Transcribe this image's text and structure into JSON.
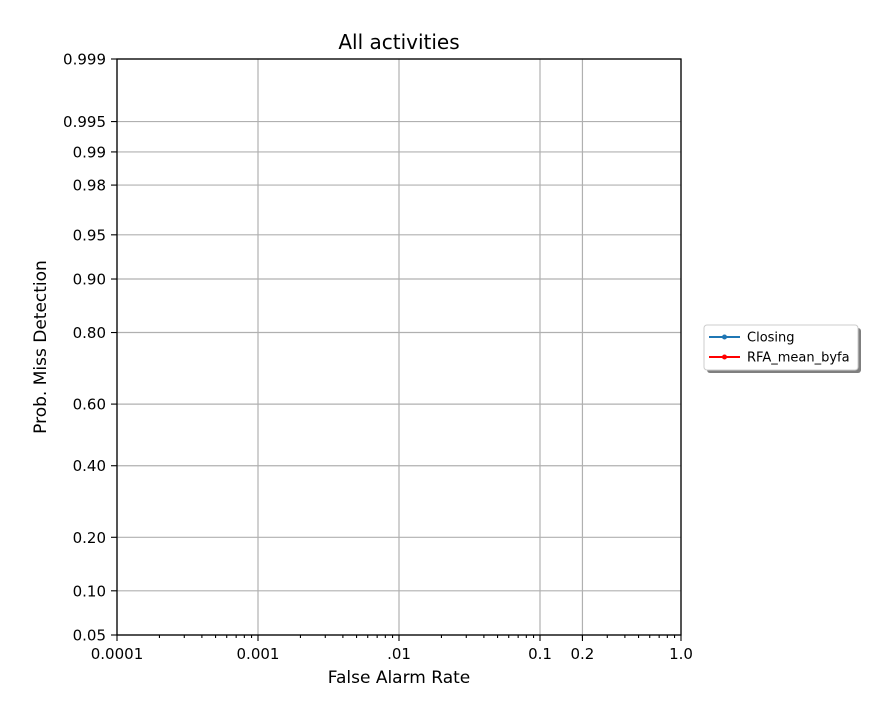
{
  "chart_data": {
    "type": "line",
    "title": "All activities",
    "xlabel": "False Alarm Rate",
    "ylabel": "Prob. Miss Detection",
    "x_scale": "log",
    "y_scale": "normal-deviate",
    "xlim": [
      0.0001,
      1.0
    ],
    "ylim": [
      0.05,
      0.999
    ],
    "grid": true,
    "x_ticks": [
      {
        "value": 0.0001,
        "label": "0.0001"
      },
      {
        "value": 0.001,
        "label": "0.001"
      },
      {
        "value": 0.01,
        "label": ".01"
      },
      {
        "value": 0.1,
        "label": "0.1"
      },
      {
        "value": 0.2,
        "label": "0.2"
      },
      {
        "value": 1.0,
        "label": "1.0"
      }
    ],
    "y_ticks": [
      {
        "value": 0.05,
        "label": "0.05"
      },
      {
        "value": 0.1,
        "label": "0.10"
      },
      {
        "value": 0.2,
        "label": "0.20"
      },
      {
        "value": 0.4,
        "label": "0.40"
      },
      {
        "value": 0.6,
        "label": "0.60"
      },
      {
        "value": 0.8,
        "label": "0.80"
      },
      {
        "value": 0.9,
        "label": "0.90"
      },
      {
        "value": 0.95,
        "label": "0.95"
      },
      {
        "value": 0.98,
        "label": "0.98"
      },
      {
        "value": 0.99,
        "label": "0.99"
      },
      {
        "value": 0.995,
        "label": "0.995"
      },
      {
        "value": 0.999,
        "label": "0.999"
      }
    ],
    "legend_position": "right, outside plot",
    "series": [
      {
        "name": "Closing",
        "color": "#1f77b4",
        "marker": "dot",
        "x": [],
        "y": []
      },
      {
        "name": "RFA_mean_byfa",
        "color": "#ff0000",
        "marker": "dot",
        "x": [],
        "y": []
      }
    ]
  }
}
